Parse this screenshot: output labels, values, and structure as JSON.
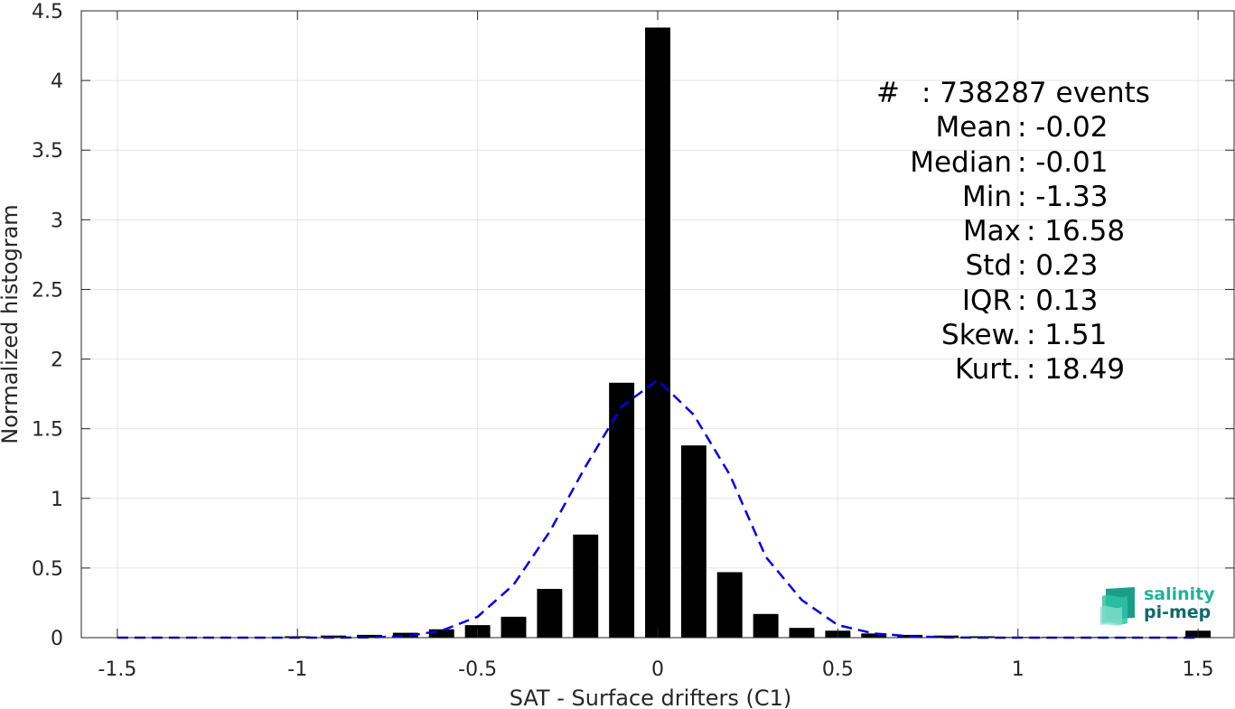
{
  "chart_data": {
    "type": "bar",
    "xlabel": "SAT - Surface drifters (C1)",
    "ylabel": "Normalized histogram",
    "xlim": [
      -1.6,
      1.6
    ],
    "ylim": [
      0,
      4.5
    ],
    "xticks": [
      -1.5,
      -1,
      -0.5,
      0,
      0.5,
      1,
      1.5
    ],
    "xtick_labels": [
      "-1.5",
      "-1",
      "-0.5",
      "0",
      "0.5",
      "1",
      "1.5"
    ],
    "yticks": [
      0,
      0.5,
      1,
      1.5,
      2,
      2.5,
      3,
      3.5,
      4,
      4.5
    ],
    "ytick_labels": [
      "0",
      "0.5",
      "1",
      "1.5",
      "2",
      "2.5",
      "3",
      "3.5",
      "4",
      "4.5"
    ],
    "grid": true,
    "bar_width": 0.07,
    "bars": {
      "x": [
        -1.3,
        -1.2,
        -1.1,
        -1.0,
        -0.9,
        -0.8,
        -0.7,
        -0.6,
        -0.5,
        -0.4,
        -0.3,
        -0.2,
        -0.1,
        0.0,
        0.1,
        0.2,
        0.3,
        0.4,
        0.5,
        0.6,
        0.7,
        0.8,
        0.9,
        1.0,
        1.1,
        1.2,
        1.3,
        1.4,
        1.5
      ],
      "values": [
        0.0,
        0.0,
        0.0,
        0.01,
        0.015,
        0.02,
        0.035,
        0.06,
        0.09,
        0.15,
        0.35,
        0.74,
        1.83,
        4.38,
        1.38,
        0.47,
        0.17,
        0.07,
        0.05,
        0.03,
        0.02,
        0.015,
        0.01,
        0.005,
        0.005,
        0.005,
        0.005,
        0.005,
        0.05
      ]
    },
    "fit_curve": {
      "style": "dashed",
      "color": "#0000ee",
      "x": [
        -1.5,
        -1.4,
        -1.3,
        -1.2,
        -1.1,
        -1.0,
        -0.9,
        -0.8,
        -0.7,
        -0.6,
        -0.5,
        -0.4,
        -0.3,
        -0.2,
        -0.1,
        0.0,
        0.1,
        0.2,
        0.3,
        0.4,
        0.5,
        0.6,
        0.7,
        0.8,
        0.9,
        1.0,
        1.1,
        1.2,
        1.3,
        1.4,
        1.5
      ],
      "y": [
        0.0,
        0.0,
        0.0,
        0.0,
        0.0,
        0.0,
        0.0,
        0.002,
        0.01,
        0.05,
        0.15,
        0.38,
        0.76,
        1.23,
        1.66,
        1.85,
        1.6,
        1.17,
        0.58,
        0.27,
        0.09,
        0.03,
        0.01,
        0.002,
        0.0,
        0.0,
        0.0,
        0.0,
        0.0,
        0.0,
        0.0
      ]
    },
    "colors": {
      "bars": "#000000",
      "fit": "#0000ee",
      "grid": "#e6e6e6",
      "axis": "#262626"
    }
  },
  "stats": [
    {
      "label": "#  ",
      "value": ": 738287 events"
    },
    {
      "label": "Mean",
      "value": ": -0.02"
    },
    {
      "label": "Median",
      "value": ": -0.01"
    },
    {
      "label": "Min",
      "value": ": -1.33"
    },
    {
      "label": "Max",
      "value": ": 16.58"
    },
    {
      "label": "Std",
      "value": ": 0.23"
    },
    {
      "label": "IQR",
      "value": ": 0.13"
    },
    {
      "label": "Skew.",
      "value": ": 1.51"
    },
    {
      "label": "Kurt.",
      "value": ": 18.49"
    }
  ],
  "logo": {
    "line1": "salinity",
    "line2": "pi-mep"
  }
}
